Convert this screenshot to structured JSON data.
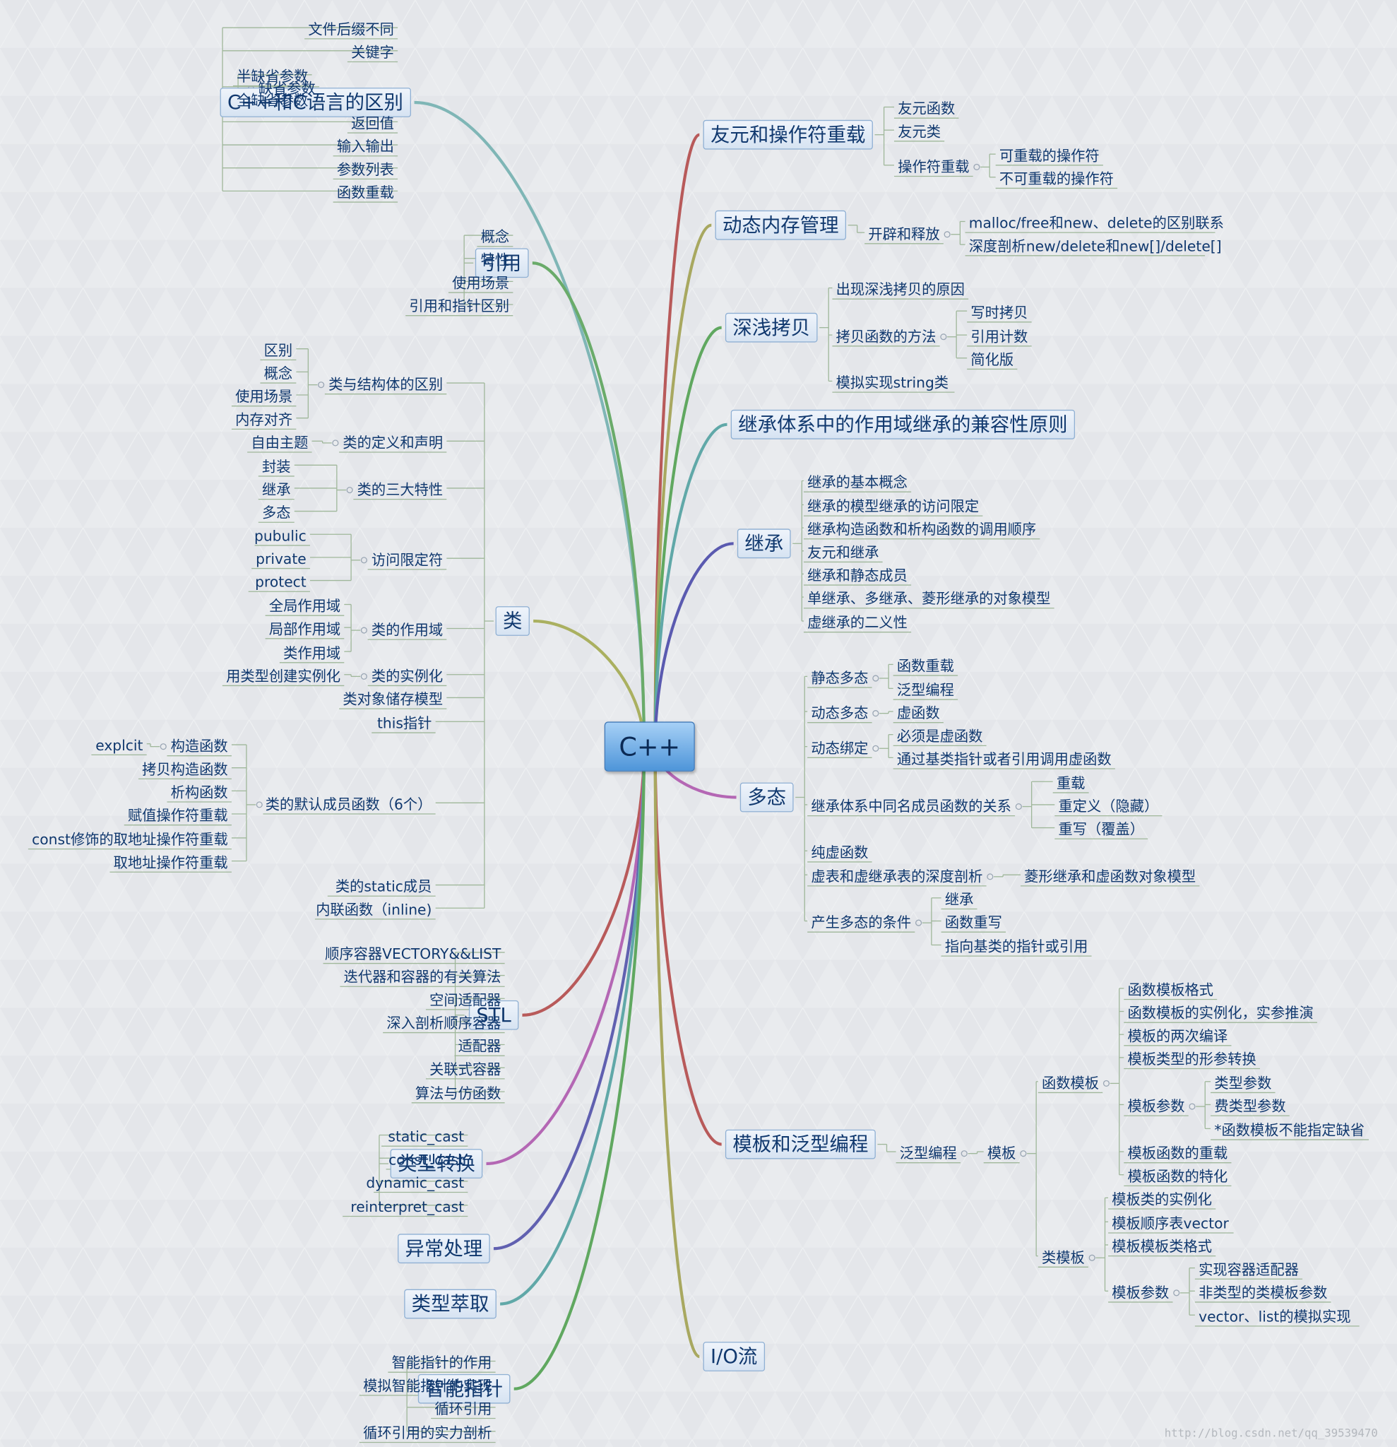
{
  "root": "C++",
  "watermark": "http://blog.csdn.net/qq_39539470",
  "colors": {
    "line": "#9fb79a",
    "box_border": "#8fb0d4",
    "text": "#10386e"
  },
  "branches": [
    {
      "id": "b0",
      "title": "C++和C语言的区别",
      "color": "#7fb6b6",
      "children": [
        {
          "t": "文件后缀不同"
        },
        {
          "t": "关键字"
        },
        {
          "t": "缺省参数",
          "c": [
            {
              "t": "半缺省参数"
            },
            {
              "t": "全缺省参数"
            }
          ]
        },
        {
          "t": "返回值"
        },
        {
          "t": "输入输出"
        },
        {
          "t": "参数列表"
        },
        {
          "t": "函数重载"
        }
      ]
    },
    {
      "id": "b1",
      "title": "引用",
      "color": "#6aab6a",
      "children": [
        {
          "t": "概念"
        },
        {
          "t": "特性"
        },
        {
          "t": "使用场景"
        },
        {
          "t": "引用和指针区别"
        }
      ]
    },
    {
      "id": "b2",
      "title": "类",
      "color": "#aab060",
      "children": [
        {
          "t": "类与结构体的区别",
          "c": [
            {
              "t": "区别"
            },
            {
              "t": "概念"
            },
            {
              "t": "使用场景"
            },
            {
              "t": "内存对齐"
            }
          ]
        },
        {
          "t": "类的定义和声明",
          "c": [
            {
              "t": "自由主题"
            }
          ]
        },
        {
          "t": "类的三大特性",
          "c": [
            {
              "t": "封装"
            },
            {
              "t": "继承"
            },
            {
              "t": "多态"
            }
          ]
        },
        {
          "t": "访问限定符",
          "c": [
            {
              "t": "pubulic"
            },
            {
              "t": "private"
            },
            {
              "t": "protect"
            }
          ]
        },
        {
          "t": "类的作用域",
          "c": [
            {
              "t": "全局作用域"
            },
            {
              "t": "局部作用域"
            },
            {
              "t": "类作用域"
            }
          ]
        },
        {
          "t": "类的实例化",
          "c": [
            {
              "t": "用类型创建实例化"
            }
          ]
        },
        {
          "t": "类对象储存模型"
        },
        {
          "t": "this指针"
        },
        {
          "t": "类的默认成员函数（6个）",
          "c": [
            {
              "t": "构造函数",
              "c": [
                {
                  "t": "explcit"
                }
              ]
            },
            {
              "t": "拷贝构造函数"
            },
            {
              "t": "析构函数"
            },
            {
              "t": "赋值操作符重载"
            },
            {
              "t": "const修饰的取地址操作符重载"
            },
            {
              "t": "取地址操作符重载"
            }
          ]
        },
        {
          "t": "类的static成员"
        },
        {
          "t": "内联函数（inline)"
        }
      ]
    },
    {
      "id": "b3",
      "title": "STL",
      "color": "#b85a5a",
      "children": [
        {
          "t": "顺序容器VECTORY&&LIST"
        },
        {
          "t": "迭代器和容器的有关算法"
        },
        {
          "t": "空间适配器"
        },
        {
          "t": "深入剖析顺序容器"
        },
        {
          "t": "适配器"
        },
        {
          "t": "关联式容器"
        },
        {
          "t": "算法与仿函数"
        }
      ]
    },
    {
      "id": "b4",
      "title": "类型转换",
      "color": "#b467b4",
      "children": [
        {
          "t": "static_cast"
        },
        {
          "t": "const_cast"
        },
        {
          "t": "dynamic_cast"
        },
        {
          "t": "reinterpret_cast"
        }
      ]
    },
    {
      "id": "b5",
      "title": "异常处理",
      "color": "#6060b0",
      "children": []
    },
    {
      "id": "b6",
      "title": "类型萃取",
      "color": "#60a8a8",
      "children": []
    },
    {
      "id": "b7",
      "title": "智能指针",
      "color": "#60a860",
      "children": [
        {
          "t": "智能指针的作用"
        },
        {
          "t": "模拟智能指针的实现"
        },
        {
          "t": "循环引用"
        },
        {
          "t": "循环引用的实力剖析"
        }
      ]
    },
    {
      "id": "b8",
      "title": "友元和操作符重载",
      "color": "#b85a5a",
      "children": [
        {
          "t": "友元函数"
        },
        {
          "t": "友元类"
        },
        {
          "t": "操作符重载",
          "c": [
            {
              "t": "可重载的操作符"
            },
            {
              "t": "不可重载的操作符"
            }
          ]
        }
      ]
    },
    {
      "id": "b9",
      "title": "动态内存管理",
      "color": "#a8a860",
      "children": [
        {
          "t": "开辟和释放",
          "c": [
            {
              "t": "malloc/free和new、delete的区别联系"
            },
            {
              "t": "深度剖析new/delete和new[]/delete[]"
            }
          ]
        }
      ]
    },
    {
      "id": "b10",
      "title": "深浅拷贝",
      "color": "#60a860",
      "children": [
        {
          "t": "出现深浅拷贝的原因"
        },
        {
          "t": "拷贝函数的方法",
          "c": [
            {
              "t": "写时拷贝"
            },
            {
              "t": "引用计数"
            },
            {
              "t": "简化版"
            }
          ]
        },
        {
          "t": "模拟实现string类"
        }
      ]
    },
    {
      "id": "b11",
      "title": "继承体系中的作用域继承的兼容性原则",
      "color": "#60a8a8",
      "children": []
    },
    {
      "id": "b12",
      "title": "继承",
      "color": "#5a5ab0",
      "children": [
        {
          "t": "继承的基本概念"
        },
        {
          "t": "继承的模型继承的访问限定"
        },
        {
          "t": "继承构造函数和析构函数的调用顺序"
        },
        {
          "t": "友元和继承"
        },
        {
          "t": "继承和静态成员"
        },
        {
          "t": "单继承、多继承、菱形继承的对象模型"
        },
        {
          "t": "虚继承的二义性"
        }
      ]
    },
    {
      "id": "b13",
      "title": "多态",
      "color": "#b467b4",
      "children": [
        {
          "t": "静态多态",
          "c": [
            {
              "t": "函数重载"
            },
            {
              "t": "泛型编程"
            }
          ]
        },
        {
          "t": "动态多态",
          "c": [
            {
              "t": "虚函数"
            }
          ]
        },
        {
          "t": "动态绑定",
          "c": [
            {
              "t": "必须是虚函数"
            },
            {
              "t": "通过基类指针或者引用调用虚函数"
            }
          ]
        },
        {
          "t": "继承体系中同名成员函数的关系",
          "c": [
            {
              "t": "重载"
            },
            {
              "t": "重定义（隐藏）"
            },
            {
              "t": "重写（覆盖）"
            }
          ]
        },
        {
          "t": "纯虚函数"
        },
        {
          "t": "虚表和虚继承表的深度剖析",
          "c": [
            {
              "t": "菱形继承和虚函数对象模型"
            }
          ]
        },
        {
          "t": "产生多态的条件",
          "c": [
            {
              "t": "继承"
            },
            {
              "t": "函数重写"
            },
            {
              "t": "指向基类的指针或引用"
            }
          ]
        }
      ]
    },
    {
      "id": "b14",
      "title": "模板和泛型编程",
      "color": "#b85a5a",
      "children": [
        {
          "t": "泛型编程",
          "c": [
            {
              "t": "模板",
              "c": [
                {
                  "t": "函数模板",
                  "c": [
                    {
                      "t": "函数模板格式"
                    },
                    {
                      "t": "函数模板的实例化，实参推演"
                    },
                    {
                      "t": "模板的两次编译"
                    },
                    {
                      "t": "模板类型的形参转换"
                    },
                    {
                      "t": "模板参数",
                      "c": [
                        {
                          "t": "类型参数"
                        },
                        {
                          "t": "费类型参数"
                        },
                        {
                          "t": "*函数模板不能指定缺省"
                        }
                      ]
                    },
                    {
                      "t": "模板函数的重载"
                    },
                    {
                      "t": "模板函数的特化"
                    }
                  ]
                },
                {
                  "t": "类模板",
                  "c": [
                    {
                      "t": "模板类的实例化"
                    },
                    {
                      "t": "模板顺序表vector"
                    },
                    {
                      "t": "模板模板类格式"
                    },
                    {
                      "t": "模板参数",
                      "c": [
                        {
                          "t": "实现容器适配器"
                        },
                        {
                          "t": "非类型的类模板参数"
                        },
                        {
                          "t": "vector、list的模拟实现"
                        }
                      ]
                    }
                  ]
                }
              ]
            }
          ]
        }
      ]
    },
    {
      "id": "b15",
      "title": "I/O流",
      "color": "#a8a860",
      "children": []
    }
  ]
}
